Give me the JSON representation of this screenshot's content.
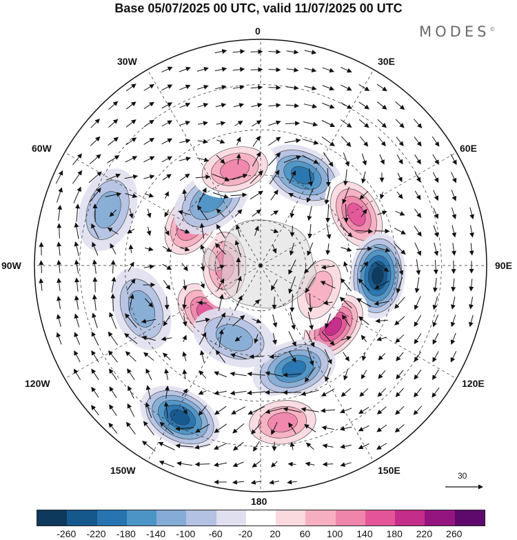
{
  "title": "Base 05/07/2025 00 UTC, valid 11/07/2025 00 UTC",
  "brand": "MODES",
  "brand_mark": "©",
  "projection": "south-polar-stereographic",
  "longitude_labels": {
    "top": "0",
    "top_right": "30E",
    "right_upper": "60E",
    "right": "90E",
    "right_lower": "120E",
    "bottom_right": "150E",
    "bottom": "180",
    "bottom_left": "150W",
    "left_lower": "120W",
    "left": "90W",
    "left_upper": "60W",
    "top_left": "30W"
  },
  "reference_vector": {
    "value": "30"
  },
  "colorbar": {
    "colors": [
      "#0d3a5c",
      "#15588c",
      "#2874b0",
      "#4d94c6",
      "#84acd6",
      "#b3c1e2",
      "#dfdff0",
      "#ffffff",
      "#fad9df",
      "#f6afc1",
      "#ef85aa",
      "#e35598",
      "#c42d89",
      "#951580",
      "#5e0a6d"
    ],
    "tick_labels": [
      "-260",
      "-220",
      "-180",
      "-140",
      "-100",
      "-60",
      "-20",
      "20",
      "60",
      "100",
      "140",
      "180",
      "220",
      "260"
    ]
  },
  "anomaly_centres": [
    {
      "lon": 25,
      "colat": 22,
      "value": -170
    },
    {
      "lon": 62,
      "colat": 24,
      "value": 160
    },
    {
      "lon": 95,
      "colat": 26,
      "value": -250
    },
    {
      "lon": 130,
      "colat": 21,
      "value": 190
    },
    {
      "lon": 162,
      "colat": 24,
      "value": -170
    },
    {
      "lon": 172,
      "colat": 35,
      "value": 120
    },
    {
      "lon": 208,
      "colat": 38,
      "value": -220
    },
    {
      "lon": 228,
      "colat": 16,
      "value": 160
    },
    {
      "lon": 270,
      "colat": 8,
      "value": 130
    },
    {
      "lon": 302,
      "colat": 18,
      "value": 150
    },
    {
      "lon": 323,
      "colat": 18,
      "value": -140
    },
    {
      "lon": 345,
      "colat": 22,
      "value": 110
    },
    {
      "lon": 112,
      "colat": 14,
      "value": 90
    },
    {
      "lon": 200,
      "colat": 17,
      "value": -90
    },
    {
      "lon": 250,
      "colat": 28,
      "value": -100
    },
    {
      "lon": 290,
      "colat": 36,
      "value": -70
    }
  ]
}
